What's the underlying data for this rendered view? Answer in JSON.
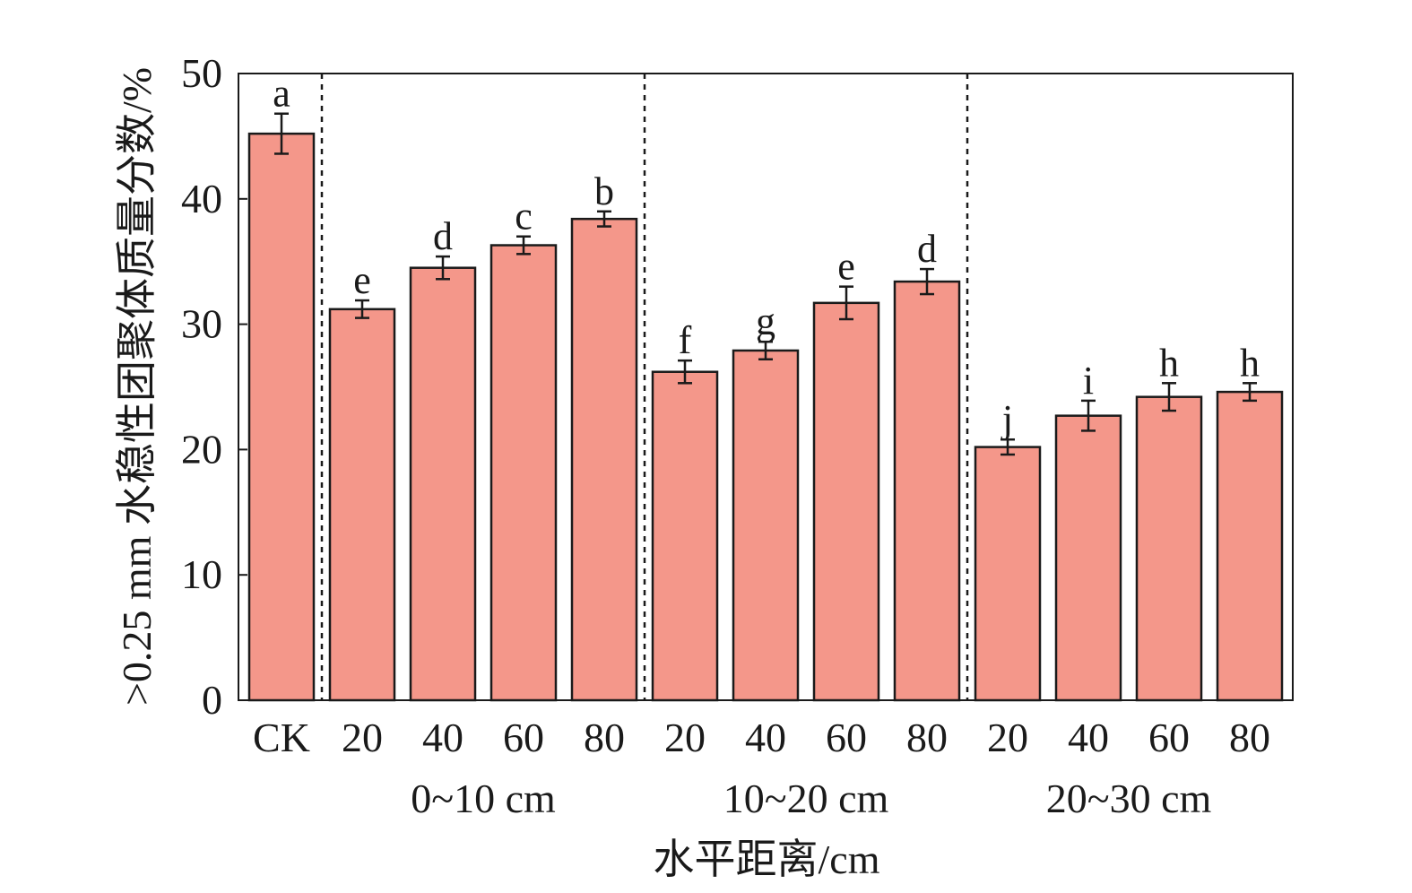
{
  "chart_data": {
    "type": "bar",
    "xlabel": "水平距离/cm",
    "ylabel": ">0.25 mm 水稳性团聚体质量分数/%",
    "ylim": [
      0,
      50
    ],
    "yticks": [
      "0",
      "10",
      "20",
      "30",
      "40",
      "50"
    ],
    "grid": false,
    "bar_color": "#f4978a",
    "categories": [
      "CK",
      "20",
      "40",
      "60",
      "80",
      "20",
      "40",
      "60",
      "80",
      "20",
      "40",
      "60",
      "80"
    ],
    "values": [
      45.2,
      31.2,
      34.5,
      36.3,
      38.4,
      26.2,
      27.9,
      31.7,
      33.4,
      20.2,
      22.7,
      24.2,
      24.6
    ],
    "errors": [
      1.6,
      0.7,
      0.9,
      0.7,
      0.6,
      0.9,
      0.7,
      1.3,
      1.0,
      0.6,
      1.2,
      1.1,
      0.7
    ],
    "letters": [
      "a",
      "e",
      "d",
      "c",
      "b",
      "f",
      "g",
      "e",
      "d",
      "j",
      "i",
      "h",
      "h"
    ],
    "groups": [
      {
        "label": "0~10 cm",
        "start": 1,
        "end": 4
      },
      {
        "label": "10~20 cm",
        "start": 5,
        "end": 8
      },
      {
        "label": "20~30 cm",
        "start": 9,
        "end": 12
      }
    ],
    "separators_after": [
      0,
      4,
      8
    ]
  }
}
